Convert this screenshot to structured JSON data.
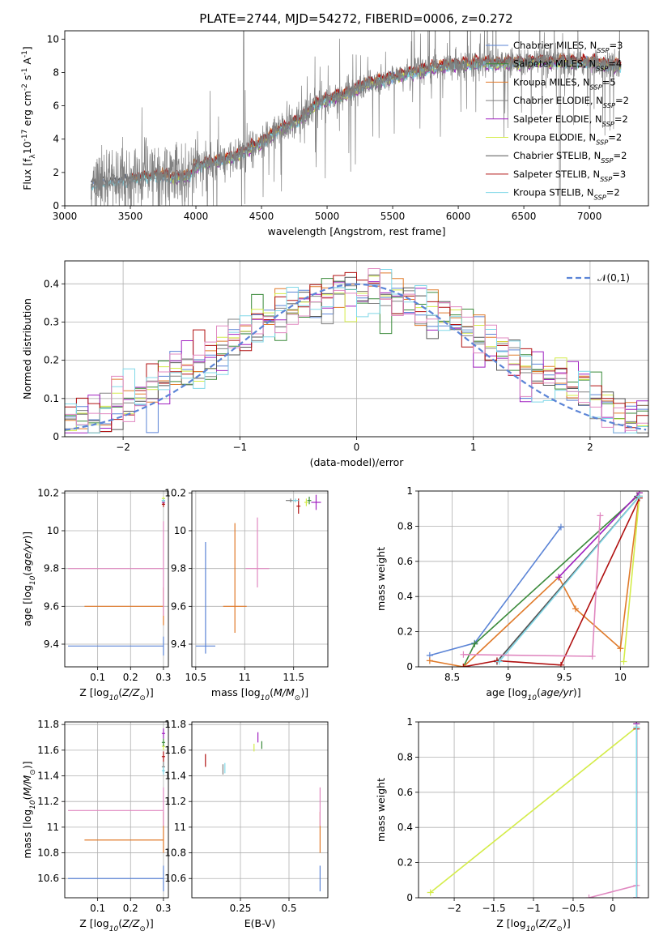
{
  "figure": {
    "title": "PLATE=2744, MJD=54272, FIBERID=0006, z=0.272"
  },
  "colors": {
    "Chabrier MILES": "#5b84d6",
    "Salpeter MILES": "#3a8a3a",
    "Kroupa MILES": "#e07a2a",
    "Chabrier ELODIE": "#808080",
    "Salpeter ELODIE": "#a020c0",
    "Kroupa ELODIE": "#d4ec4a",
    "Chabrier STELIB": "#555555",
    "Salpeter STELIB": "#b01010",
    "Kroupa STELIB": "#80d8e8",
    "pink": "#e088c0",
    "normal": "#5b84d6",
    "grid": "#b0b0b0"
  },
  "chart_data": [
    {
      "id": "spectrum",
      "type": "line",
      "xlabel": "wavelength [Angstrom, rest frame]",
      "ylabel": "Flux [f$_\\lambda$10$^{-17}$ erg cm$^{-2}$ s$^{-1}$ A$^{-1}$]",
      "xlim": [
        3000,
        7450
      ],
      "ylim": [
        0,
        10.5
      ],
      "xticks": [
        3000,
        3500,
        4000,
        4500,
        5000,
        5500,
        6000,
        6500,
        7000
      ],
      "yticks": [
        0,
        2,
        4,
        6,
        8,
        10
      ],
      "grid": false,
      "legend_position": "upper-right",
      "continuum": {
        "x": [
          3200,
          3300,
          3400,
          3500,
          3600,
          3700,
          3800,
          3900,
          3950,
          4000,
          4100,
          4200,
          4300,
          4400,
          4500,
          4600,
          4700,
          4800,
          4900,
          5000,
          5100,
          5200,
          5300,
          5400,
          5500,
          5600,
          5700,
          5800,
          5900,
          6000,
          6100,
          6200,
          6300,
          6400,
          6500,
          6600,
          6700,
          6800,
          6900,
          7000,
          7100,
          7200,
          7240
        ],
        "y": [
          1.3,
          1.4,
          1.5,
          1.6,
          1.7,
          1.8,
          1.7,
          1.75,
          1.8,
          2.4,
          2.6,
          2.7,
          3.0,
          3.4,
          3.8,
          4.4,
          4.8,
          5.2,
          6.0,
          6.4,
          6.6,
          6.9,
          7.3,
          7.5,
          7.7,
          7.9,
          8.1,
          8.3,
          8.4,
          8.5,
          8.5,
          8.6,
          8.5,
          8.6,
          8.6,
          8.7,
          8.6,
          8.7,
          8.6,
          8.6,
          8.5,
          8.4,
          8.4
        ]
      },
      "series": [
        {
          "name": "Chabrier MILES, N$_{SSP}$=3",
          "offset": 0.05
        },
        {
          "name": "Salpeter MILES, N$_{SSP}$=4",
          "offset": 0.0
        },
        {
          "name": "Kroupa MILES, N$_{SSP}$=5",
          "offset": 0.15
        },
        {
          "name": "Chabrier ELODIE, N$_{SSP}$=2",
          "offset": -0.05
        },
        {
          "name": "Salpeter ELODIE, N$_{SSP}$=2",
          "offset": -0.2
        },
        {
          "name": "Kroupa ELODIE, N$_{SSP}$=2",
          "offset": -0.1
        },
        {
          "name": "Chabrier STELIB, N$_{SSP}$=2",
          "offset": 0.1
        },
        {
          "name": "Salpeter STELIB, N$_{SSP}$=3",
          "offset": 0.2
        },
        {
          "name": "Kroupa STELIB, N$_{SSP}$=2",
          "offset": -0.15
        }
      ]
    },
    {
      "id": "residuals",
      "type": "histogram",
      "xlabel": "(data-model)/error",
      "ylabel": "Normed distribution",
      "xlim": [
        -2.5,
        2.5
      ],
      "ylim": [
        0,
        0.46
      ],
      "xticks": [
        -2,
        -1,
        0,
        1,
        2
      ],
      "yticks": [
        0.0,
        0.1,
        0.2,
        0.3,
        0.4
      ],
      "grid": true,
      "legend_position": "upper-right",
      "legend": "$\\mathcal{N}(0,1)$",
      "bin_width": 0.1
    },
    {
      "id": "age_vs_Z",
      "type": "errorbar",
      "xlabel": "Z [log$_{10}$($Z/Z_\\odot$)]",
      "ylabel": "age  [log$_{10}$($age/yr$)]",
      "xlim": [
        0.0,
        0.315
      ],
      "ylim": [
        9.28,
        10.21
      ],
      "xticks": [
        0.1,
        0.2,
        0.3
      ],
      "yticks": [
        9.4,
        9.6,
        9.8,
        10.0,
        10.2
      ],
      "grid": true,
      "points": [
        {
          "x": 0.3,
          "y": 9.39,
          "xerr": [
            0.29,
            0.0
          ],
          "yerr": [
            0.05,
            0.05
          ],
          "color": "Chabrier MILES"
        },
        {
          "x": 0.3,
          "y": 9.6,
          "xerr": [
            0.24,
            0.0
          ],
          "yerr": [
            0.1,
            0.1
          ],
          "color": "Kroupa MILES"
        },
        {
          "x": 0.3,
          "y": 9.8,
          "xerr": [
            0.29,
            0.0
          ],
          "yerr": [
            0.25,
            0.25
          ],
          "color": "pink"
        },
        {
          "x": 0.3,
          "y": 10.16,
          "xerr": [
            0.005,
            0.005
          ],
          "yerr": [
            0.01,
            0.01
          ],
          "color": "Salpeter MILES"
        },
        {
          "x": 0.3,
          "y": 10.15,
          "xerr": [
            0.005,
            0.005
          ],
          "yerr": [
            0.01,
            0.01
          ],
          "color": "Salpeter ELODIE"
        },
        {
          "x": 0.3,
          "y": 10.17,
          "xerr": [
            0.005,
            0.005
          ],
          "yerr": [
            0.01,
            0.01
          ],
          "color": "Kroupa ELODIE"
        },
        {
          "x": 0.3,
          "y": 10.14,
          "xerr": [
            0.005,
            0.005
          ],
          "yerr": [
            0.015,
            0.015
          ],
          "color": "Salpeter STELIB"
        },
        {
          "x": 0.3,
          "y": 10.16,
          "xerr": [
            0.005,
            0.005
          ],
          "yerr": [
            0.01,
            0.01
          ],
          "color": "Kroupa STELIB"
        }
      ]
    },
    {
      "id": "age_vs_mass",
      "type": "errorbar",
      "xlabel": "mass [log$_{10}$($M/M_\\odot$)]",
      "ylabel": "",
      "xlim": [
        10.46,
        11.85
      ],
      "ylim": [
        9.28,
        10.21
      ],
      "xticks": [
        10.5,
        11.0,
        11.5
      ],
      "yticks": [
        9.4,
        9.6,
        9.8,
        10.0,
        10.2
      ],
      "grid": true,
      "points": [
        {
          "x": 10.6,
          "y": 9.39,
          "xerr": [
            0.1,
            0.1
          ],
          "yerr": [
            0.04,
            0.55
          ],
          "color": "Chabrier MILES"
        },
        {
          "x": 10.9,
          "y": 9.6,
          "xerr": [
            0.12,
            0.12
          ],
          "yerr": [
            0.14,
            0.44
          ],
          "color": "Kroupa MILES"
        },
        {
          "x": 11.13,
          "y": 9.8,
          "xerr": [
            0.12,
            0.12
          ],
          "yerr": [
            0.1,
            0.27
          ],
          "color": "pink"
        },
        {
          "x": 11.47,
          "y": 10.16,
          "xerr": [
            0.05,
            0.05
          ],
          "yerr": [
            0.01,
            0.01
          ],
          "color": "Chabrier ELODIE"
        },
        {
          "x": 11.55,
          "y": 10.13,
          "xerr": [
            0.02,
            0.02
          ],
          "yerr": [
            0.04,
            0.04
          ],
          "color": "Salpeter STELIB"
        },
        {
          "x": 11.63,
          "y": 10.15,
          "xerr": [
            0.02,
            0.02
          ],
          "yerr": [
            0.02,
            0.02
          ],
          "color": "Kroupa ELODIE"
        },
        {
          "x": 11.66,
          "y": 10.16,
          "xerr": [
            0.02,
            0.02
          ],
          "yerr": [
            0.02,
            0.02
          ],
          "color": "Salpeter MILES"
        },
        {
          "x": 11.73,
          "y": 10.15,
          "xerr": [
            0.05,
            0.05
          ],
          "yerr": [
            0.04,
            0.04
          ],
          "color": "Salpeter ELODIE"
        },
        {
          "x": 11.52,
          "y": 10.16,
          "xerr": [
            0.03,
            0.03
          ],
          "yerr": [
            0.01,
            0.01
          ],
          "color": "Kroupa STELIB"
        }
      ]
    },
    {
      "id": "massweight_vs_age",
      "type": "line",
      "xlabel": "age  [log$_{10}$($age/yr$)]",
      "ylabel": "mass weight",
      "xlim": [
        8.2,
        10.25
      ],
      "ylim": [
        0,
        1
      ],
      "xticks": [
        8.5,
        9.0,
        9.5,
        10.0
      ],
      "yticks": [
        0.0,
        0.2,
        0.4,
        0.6,
        0.8,
        1.0
      ],
      "grid": true,
      "series": [
        {
          "color": "Chabrier MILES",
          "x": [
            8.3,
            8.7,
            9.47
          ],
          "y": [
            0.065,
            0.135,
            0.795
          ]
        },
        {
          "color": "Salpeter MILES",
          "x": [
            8.6,
            8.7,
            10.15
          ],
          "y": [
            0.0,
            0.13,
            0.97
          ]
        },
        {
          "color": "Kroupa MILES",
          "x": [
            8.3,
            8.6,
            9.45,
            9.6,
            10.0,
            10.17
          ],
          "y": [
            0.035,
            0.0,
            0.51,
            0.33,
            0.105,
            0.99
          ]
        },
        {
          "color": "Chabrier ELODIE",
          "x": [
            8.9,
            10.17
          ],
          "y": [
            0.03,
            0.97
          ]
        },
        {
          "color": "Salpeter ELODIE",
          "x": [
            9.45,
            10.17
          ],
          "y": [
            0.51,
            0.99
          ]
        },
        {
          "color": "Kroupa ELODIE",
          "x": [
            10.03,
            10.17
          ],
          "y": [
            0.03,
            0.97
          ]
        },
        {
          "color": "Chabrier STELIB",
          "x": [
            8.9,
            10.17
          ],
          "y": [
            0.03,
            0.97
          ]
        },
        {
          "color": "Salpeter STELIB",
          "x": [
            8.6,
            8.9,
            9.47,
            10.17
          ],
          "y": [
            0.0,
            0.035,
            0.01,
            0.96
          ]
        },
        {
          "color": "Kroupa STELIB",
          "x": [
            8.92,
            10.17
          ],
          "y": [
            0.03,
            0.97
          ]
        },
        {
          "color": "pink",
          "x": [
            8.6,
            9.75,
            9.82
          ],
          "y": [
            0.07,
            0.06,
            0.86
          ]
        }
      ]
    },
    {
      "id": "mass_vs_Z",
      "type": "errorbar",
      "xlabel": "Z [log$_{10}$($Z/Z_\\odot$)]",
      "ylabel": "mass [log$_{10}$($M/M_\\odot$)]",
      "xlim": [
        0.0,
        0.315
      ],
      "ylim": [
        10.45,
        11.82
      ],
      "xticks": [
        0.1,
        0.2,
        0.3
      ],
      "yticks": [
        10.6,
        10.8,
        11.0,
        11.2,
        11.4,
        11.6,
        11.8
      ],
      "grid": true,
      "points": [
        {
          "x": 0.3,
          "y": 10.6,
          "xerr": [
            0.29,
            0.0
          ],
          "yerr": [
            0.1,
            0.1
          ],
          "color": "Chabrier MILES"
        },
        {
          "x": 0.3,
          "y": 10.9,
          "xerr": [
            0.24,
            0.0
          ],
          "yerr": [
            0.1,
            0.22
          ],
          "color": "Kroupa MILES"
        },
        {
          "x": 0.3,
          "y": 11.13,
          "xerr": [
            0.29,
            0.0
          ],
          "yerr": [
            0.12,
            0.18
          ],
          "color": "pink"
        },
        {
          "x": 0.3,
          "y": 11.47,
          "xerr": [
            0.005,
            0.005
          ],
          "yerr": [
            0.04,
            0.04
          ],
          "color": "Chabrier ELODIE"
        },
        {
          "x": 0.3,
          "y": 11.55,
          "xerr": [
            0.005,
            0.005
          ],
          "yerr": [
            0.04,
            0.04
          ],
          "color": "Salpeter STELIB"
        },
        {
          "x": 0.3,
          "y": 11.63,
          "xerr": [
            0.005,
            0.005
          ],
          "yerr": [
            0.03,
            0.03
          ],
          "color": "Kroupa ELODIE"
        },
        {
          "x": 0.3,
          "y": 11.66,
          "xerr": [
            0.005,
            0.005
          ],
          "yerr": [
            0.03,
            0.03
          ],
          "color": "Salpeter MILES"
        },
        {
          "x": 0.3,
          "y": 11.73,
          "xerr": [
            0.005,
            0.005
          ],
          "yerr": [
            0.04,
            0.04
          ],
          "color": "Salpeter ELODIE"
        },
        {
          "x": 0.3,
          "y": 11.44,
          "xerr": [
            0.005,
            0.005
          ],
          "yerr": [
            0.03,
            0.03
          ],
          "color": "Kroupa STELIB"
        }
      ]
    },
    {
      "id": "mass_vs_EBV",
      "type": "errorbar",
      "xlabel": "E(B-V)",
      "ylabel": "",
      "xlim": [
        0.0,
        0.7
      ],
      "ylim": [
        10.45,
        11.82
      ],
      "xticks": [
        0.25,
        0.5
      ],
      "yticks": [
        10.6,
        10.8,
        11.0,
        11.2,
        11.4,
        11.6,
        11.8
      ],
      "grid": true,
      "points": [
        {
          "x": 0.66,
          "y": 10.6,
          "xerr": [
            0.0,
            0.0
          ],
          "yerr": [
            0.1,
            0.1
          ],
          "color": "Chabrier MILES"
        },
        {
          "x": 0.66,
          "y": 10.9,
          "xerr": [
            0.0,
            0.0
          ],
          "yerr": [
            0.1,
            0.22
          ],
          "color": "Kroupa MILES"
        },
        {
          "x": 0.66,
          "y": 11.13,
          "xerr": [
            0.0,
            0.0
          ],
          "yerr": [
            0.12,
            0.18
          ],
          "color": "pink"
        },
        {
          "x": 0.07,
          "y": 11.52,
          "xerr": [
            0.0,
            0.0
          ],
          "yerr": [
            0.05,
            0.05
          ],
          "color": "Salpeter STELIB"
        },
        {
          "x": 0.16,
          "y": 11.45,
          "xerr": [
            0.0,
            0.0
          ],
          "yerr": [
            0.04,
            0.04
          ],
          "color": "Chabrier ELODIE"
        },
        {
          "x": 0.17,
          "y": 11.46,
          "xerr": [
            0.0,
            0.0
          ],
          "yerr": [
            0.04,
            0.04
          ],
          "color": "Kroupa STELIB"
        },
        {
          "x": 0.32,
          "y": 11.62,
          "xerr": [
            0.0,
            0.0
          ],
          "yerr": [
            0.03,
            0.03
          ],
          "color": "Kroupa ELODIE"
        },
        {
          "x": 0.34,
          "y": 11.7,
          "xerr": [
            0.0,
            0.0
          ],
          "yerr": [
            0.04,
            0.04
          ],
          "color": "Salpeter ELODIE"
        },
        {
          "x": 0.36,
          "y": 11.64,
          "xerr": [
            0.0,
            0.0
          ],
          "yerr": [
            0.03,
            0.03
          ],
          "color": "Salpeter MILES"
        }
      ]
    },
    {
      "id": "massweight_vs_Z",
      "type": "line",
      "xlabel": "Z [log$_{10}$($Z/Z_\\odot$)]",
      "ylabel": "mass weight",
      "xlim": [
        -2.45,
        0.45
      ],
      "ylim": [
        0,
        1
      ],
      "xticks": [
        -2.0,
        -1.5,
        -1.0,
        -0.5,
        0.0
      ],
      "yticks": [
        0.0,
        0.2,
        0.4,
        0.6,
        0.8,
        1.0
      ],
      "grid": true,
      "series": [
        {
          "color": "Kroupa ELODIE",
          "x": [
            -2.3,
            0.3
          ],
          "y": [
            0.03,
            0.97
          ]
        },
        {
          "color": "pink",
          "x": [
            -0.3,
            0.3
          ],
          "y": [
            0.0,
            0.07
          ]
        },
        {
          "color": "Chabrier MILES",
          "x": [
            0.3,
            0.3
          ],
          "y": [
            0.0,
            0.99
          ]
        },
        {
          "color": "Kroupa MILES",
          "x": [
            0.3,
            0.3
          ],
          "y": [
            0.0,
            0.99
          ]
        },
        {
          "color": "Salpeter ELODIE",
          "x": [
            0.3,
            0.3
          ],
          "y": [
            0.0,
            0.99
          ]
        },
        {
          "color": "Salpeter STELIB",
          "x": [
            0.3,
            0.3
          ],
          "y": [
            0.0,
            0.96
          ]
        },
        {
          "color": "Kroupa STELIB",
          "x": [
            0.3,
            0.3
          ],
          "y": [
            0.0,
            0.97
          ]
        }
      ]
    }
  ]
}
